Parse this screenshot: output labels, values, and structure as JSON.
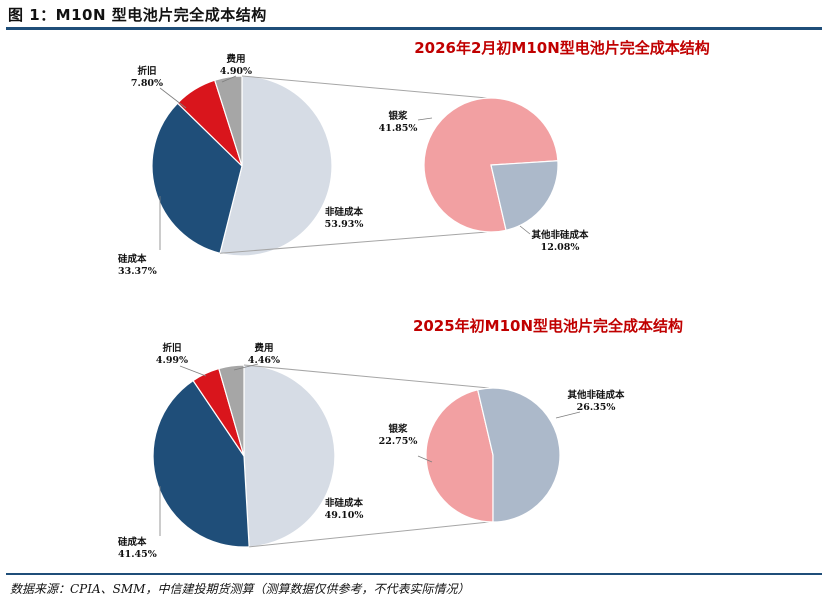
{
  "figure": {
    "title": "图 1：M10N 型电池片完全成本结构",
    "source": "数据来源：CPIA、SMM，中信建投期货测算（测算数据仅供参考，不代表实际情况）"
  },
  "chart_data": [
    {
      "type": "pie",
      "title": "2026年2月初M10N型电池片完全成本结构",
      "slices": [
        {
          "label": "非硅成本",
          "value": 53.93,
          "display": "53.93%",
          "color": "#d6dce5"
        },
        {
          "label": "硅成本",
          "value": 33.37,
          "display": "33.37%",
          "color": "#1f4e79"
        },
        {
          "label": "折旧",
          "value": 7.8,
          "display": "7.80%",
          "color": "#d9151c"
        },
        {
          "label": "费用",
          "value": 4.9,
          "display": "4.90%",
          "color": "#a6a6a6"
        }
      ],
      "breakdown": [
        {
          "label": "银浆",
          "value": 41.85,
          "display": "41.85%",
          "color": "#f2a0a2"
        },
        {
          "label": "其他非硅成本",
          "value": 12.08,
          "display": "12.08%",
          "color": "#acb9ca"
        }
      ]
    },
    {
      "type": "pie",
      "title": "2025年初M10N型电池片完全成本结构",
      "slices": [
        {
          "label": "非硅成本",
          "value": 49.1,
          "display": "49.10%",
          "color": "#d6dce5"
        },
        {
          "label": "硅成本",
          "value": 41.45,
          "display": "41.45%",
          "color": "#1f4e79"
        },
        {
          "label": "折旧",
          "value": 4.99,
          "display": "4.99%",
          "color": "#d9151c"
        },
        {
          "label": "费用",
          "value": 4.46,
          "display": "4.46%",
          "color": "#a6a6a6"
        }
      ],
      "breakdown": [
        {
          "label": "银浆",
          "value": 22.75,
          "display": "22.75%",
          "color": "#f2a0a2"
        },
        {
          "label": "其他非硅成本",
          "value": 26.35,
          "display": "26.35%",
          "color": "#acb9ca"
        }
      ]
    }
  ]
}
